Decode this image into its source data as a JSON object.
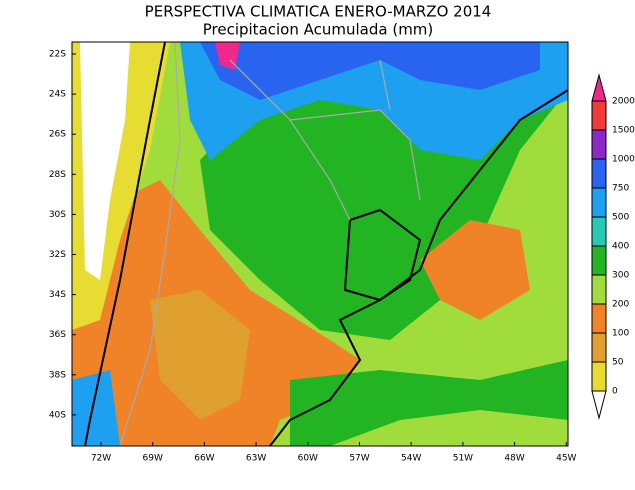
{
  "title": "PERSPECTIVA CLIMATICA ENERO-MARZO 2014",
  "subtitle": "Precipitacion Acumulada (mm)",
  "lat_labels": [
    "22S",
    "24S",
    "26S",
    "28S",
    "30S",
    "32S",
    "34S",
    "36S",
    "38S",
    "40S"
  ],
  "lon_labels": [
    "72W",
    "69W",
    "66W",
    "63W",
    "60W",
    "57W",
    "54W",
    "51W",
    "48W",
    "45W"
  ],
  "colorbar": {
    "levels": [
      0,
      50,
      100,
      200,
      300,
      400,
      500,
      750,
      1000,
      1500,
      2000
    ],
    "under_color": "#ffffff",
    "colors": [
      "#e6dc32",
      "#e0a030",
      "#f08228",
      "#a0dc3c",
      "#22b422",
      "#28c8b4",
      "#1ea0f0",
      "#2864f0",
      "#8c28c8",
      "#f03c3c"
    ],
    "over_color": "#f0288c"
  }
}
